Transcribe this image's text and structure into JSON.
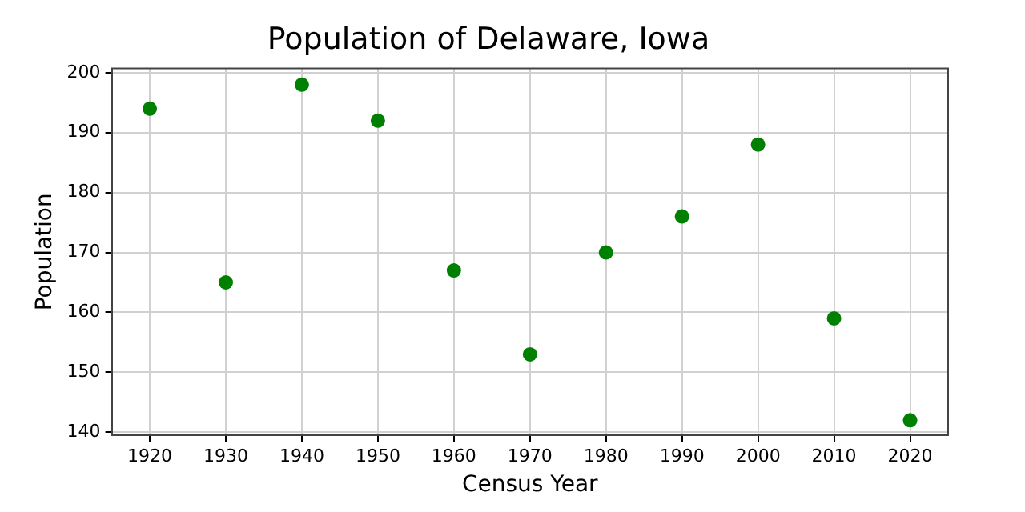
{
  "chart_data": {
    "type": "scatter",
    "title": "Population of Delaware, Iowa",
    "xlabel": "Census Year",
    "ylabel": "Population",
    "x": [
      1920,
      1930,
      1940,
      1950,
      1960,
      1970,
      1980,
      1990,
      2000,
      2010,
      2020
    ],
    "series": [
      {
        "color": "#008000",
        "values": [
          194,
          165,
          198,
          192,
          167,
          153,
          170,
          176,
          188,
          159,
          142
        ]
      }
    ],
    "xlim": [
      1915,
      2025
    ],
    "xticks": [
      1920,
      1930,
      1940,
      1950,
      1960,
      1970,
      1980,
      1990,
      2000,
      2010,
      2020
    ],
    "ylim": [
      139.5,
      200.7
    ],
    "yticks": [
      140,
      150,
      160,
      170,
      180,
      190,
      200
    ],
    "grid": true,
    "marker": "circle"
  }
}
